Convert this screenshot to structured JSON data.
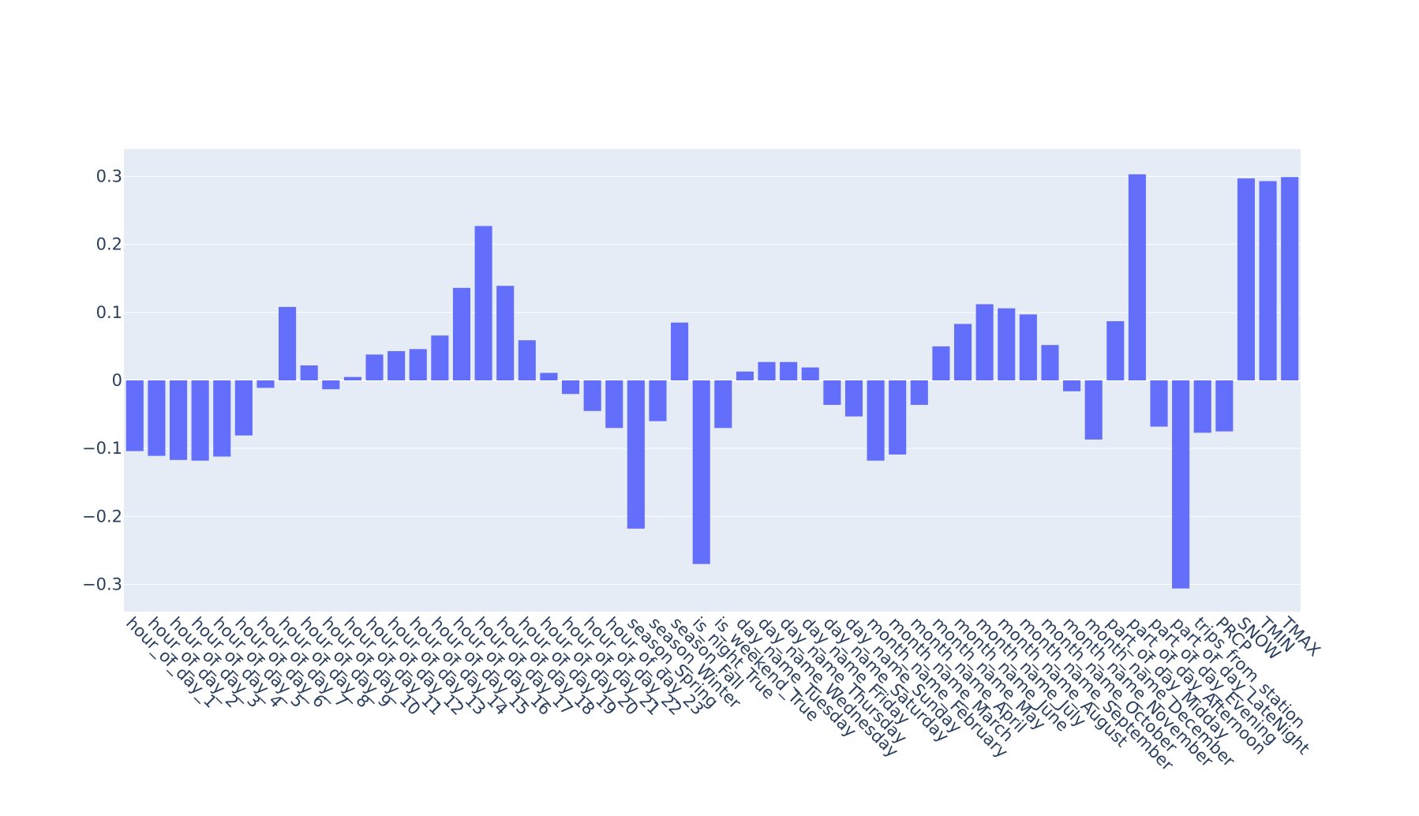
{
  "chart_data": {
    "type": "bar",
    "title": "",
    "xlabel": "",
    "ylabel": "",
    "ylim": [
      -0.34,
      0.34
    ],
    "y_ticks": [
      0.3,
      0.2,
      0.1,
      0,
      -0.1,
      -0.2,
      -0.3
    ],
    "y_tick_labels": [
      "0.3",
      "0.2",
      "0.1",
      "0",
      "−0.1",
      "−0.2",
      "−0.3"
    ],
    "grid": true,
    "legend": "none",
    "colors": {
      "bar": "#636efa",
      "plot_bg": "#e5ecf6",
      "grid": "#ffffff",
      "zero_line": "#ffffff",
      "tick_text": "#2a3f5f"
    },
    "categories": [
      "hour_of_day_1",
      "hour_of_day_2",
      "hour_of_day_3",
      "hour_of_day_4",
      "hour_of_day_5",
      "hour_of_day_6",
      "hour_of_day_7",
      "hour_of_day_8",
      "hour_of_day_9",
      "hour_of_day_10",
      "hour_of_day_11",
      "hour_of_day_12",
      "hour_of_day_13",
      "hour_of_day_14",
      "hour_of_day_15",
      "hour_of_day_16",
      "hour_of_day_17",
      "hour_of_day_18",
      "hour_of_day_19",
      "hour_of_day_20",
      "hour_of_day_21",
      "hour_of_day_22",
      "hour_of_day_23",
      "season_Spring",
      "season_Winter",
      "season_Fall",
      "is_night_True",
      "is_weekend_True",
      "day_name_Tuesday",
      "day_name_Wednesday",
      "day_name_Thursday",
      "day_name_Friday",
      "day_name_Saturday",
      "day_name_Sunday",
      "month_name_February",
      "month_name_March",
      "month_name_April",
      "month_name_May",
      "month_name_June",
      "month_name_July",
      "month_name_August",
      "month_name_September",
      "month_name_October",
      "month_name_November",
      "month_name_December",
      "part_of_day_Midday",
      "part_of_day_Afternoon",
      "part_of_day_Evening",
      "part_of_day_LateNight",
      "trips_from_station",
      "PRCP",
      "SNOW",
      "TMIN",
      "TMAX"
    ],
    "values": [
      -0.104,
      -0.111,
      -0.117,
      -0.118,
      -0.112,
      -0.081,
      -0.011,
      0.108,
      0.022,
      -0.013,
      0.005,
      0.038,
      0.043,
      0.046,
      0.066,
      0.136,
      0.227,
      0.139,
      0.059,
      0.011,
      -0.02,
      -0.045,
      -0.07,
      -0.218,
      -0.06,
      0.085,
      -0.27,
      -0.07,
      0.013,
      0.027,
      0.027,
      0.019,
      -0.036,
      -0.053,
      -0.118,
      -0.109,
      -0.036,
      0.05,
      0.083,
      0.112,
      0.106,
      0.097,
      0.052,
      -0.016,
      -0.087,
      0.087,
      0.303,
      -0.068,
      -0.306,
      -0.077,
      -0.075,
      0.297,
      0.293,
      0.299
    ]
  }
}
